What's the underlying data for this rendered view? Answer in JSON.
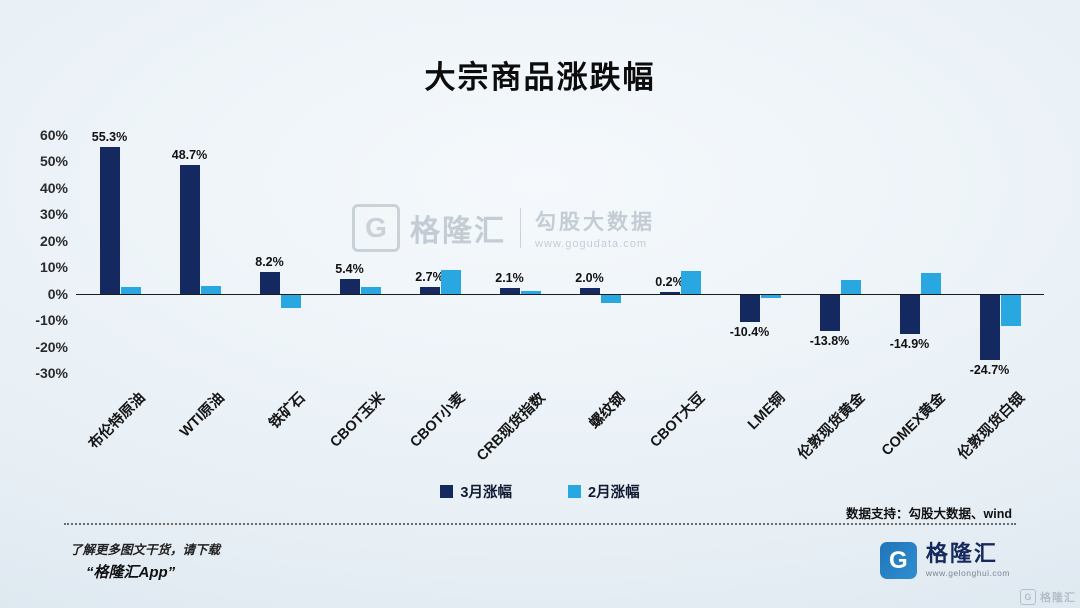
{
  "title": "大宗商品涨跌幅",
  "chart_data": {
    "type": "bar",
    "title": "大宗商品涨跌幅",
    "categories": [
      "布伦特原油",
      "WTI原油",
      "铁矿石",
      "CBOT玉米",
      "CBOT小麦",
      "CRB现货指数",
      "螺纹钢",
      "CBOT大豆",
      "LME铜",
      "伦敦现货黄金",
      "COMEX黄金",
      "伦敦现货白银"
    ],
    "series": [
      {
        "name": "3月涨幅",
        "color": "#14295f",
        "show_labels": true,
        "values": [
          55.3,
          48.7,
          8.2,
          5.4,
          2.7,
          2.1,
          2.0,
          0.2,
          -10.4,
          -13.8,
          -14.9,
          -24.7
        ]
      },
      {
        "name": "2月涨幅",
        "color": "#29a7e0",
        "show_labels": false,
        "values": [
          2.5,
          3.0,
          -5.0,
          2.5,
          9.0,
          1.0,
          -3.0,
          8.5,
          -1.2,
          5.0,
          8.0,
          -12.0
        ]
      }
    ],
    "ylim": [
      -30,
      60
    ],
    "yticks": [
      60,
      50,
      40,
      30,
      20,
      10,
      0,
      -10,
      -20,
      -30
    ],
    "grid": false,
    "legend_position": "bottom"
  },
  "watermark": {
    "logo_letter": "G",
    "brand": "格隆汇",
    "sub": "勾股大数据",
    "url": "www.gogudata.com"
  },
  "footer": {
    "support": "数据支持：勾股大数据、wind",
    "promo_line1": "了解更多图文干货，请下载",
    "promo_line2": "“格隆汇App”",
    "logo_letter": "G",
    "brand": "格隆汇",
    "brand_url": "www.gelonghui.com",
    "brand_color": "#1f74b8",
    "corner_brand": "格隆汇"
  }
}
